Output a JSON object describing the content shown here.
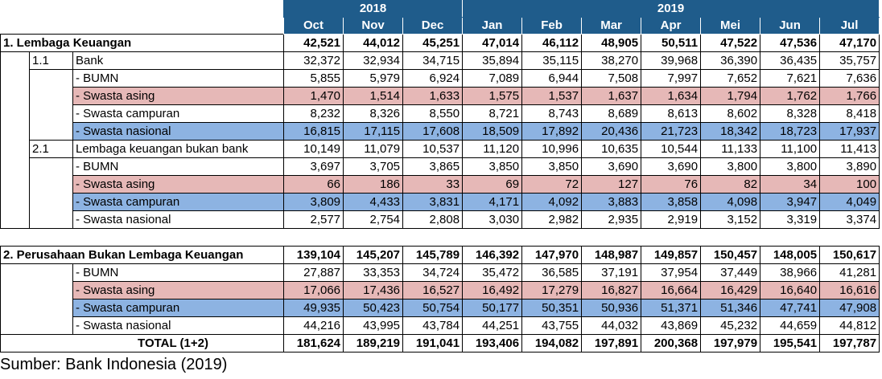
{
  "years": [
    "2018",
    "2019"
  ],
  "months": [
    "Oct",
    "Nov",
    "Dec",
    "Jan",
    "Feb",
    "Mar",
    "Apr",
    "Mei",
    "Jun",
    "Jul"
  ],
  "sections": [
    {
      "label": "1.  Lembaga Keuangan",
      "values": [
        "42,521",
        "44,012",
        "45,251",
        "47,014",
        "46,112",
        "48,905",
        "50,511",
        "47,522",
        "47,536",
        "47,170"
      ],
      "subsections": [
        {
          "code": "1.1",
          "label": "Bank",
          "values": [
            "32,372",
            "32,934",
            "34,715",
            "35,894",
            "35,115",
            "38,270",
            "39,968",
            "36,390",
            "36,435",
            "35,757"
          ],
          "rows": [
            {
              "label": "- BUMN",
              "tone": "",
              "values": [
                "5,855",
                "5,979",
                "6,924",
                "7,089",
                "6,944",
                "7,508",
                "7,997",
                "7,652",
                "7,621",
                "7,636"
              ]
            },
            {
              "label": "- Swasta asing",
              "tone": "pink",
              "values": [
                "1,470",
                "1,514",
                "1,633",
                "1,575",
                "1,537",
                "1,637",
                "1,634",
                "1,794",
                "1,762",
                "1,766"
              ]
            },
            {
              "label": "- Swasta campuran",
              "tone": "",
              "values": [
                "8,232",
                "8,326",
                "8,550",
                "8,721",
                "8,743",
                "8,689",
                "8,613",
                "8,602",
                "8,328",
                "8,418"
              ]
            },
            {
              "label": "- Swasta nasional",
              "tone": "blue",
              "values": [
                "16,815",
                "17,115",
                "17,608",
                "18,509",
                "17,892",
                "20,436",
                "21,723",
                "18,342",
                "18,723",
                "17,937"
              ]
            }
          ]
        },
        {
          "code": "2.1",
          "label": "Lembaga keuangan bukan bank",
          "values": [
            "10,149",
            "11,079",
            "10,537",
            "11,120",
            "10,996",
            "10,635",
            "10,544",
            "11,133",
            "11,100",
            "11,413"
          ],
          "rows": [
            {
              "label": "- BUMN",
              "tone": "",
              "values": [
                "3,697",
                "3,705",
                "3,865",
                "3,850",
                "3,850",
                "3,690",
                "3,690",
                "3,800",
                "3,800",
                "3,890"
              ]
            },
            {
              "label": "- Swasta asing",
              "tone": "pink",
              "values": [
                "66",
                "186",
                "33",
                "69",
                "72",
                "127",
                "76",
                "82",
                "34",
                "100"
              ]
            },
            {
              "label": "- Swasta campuran",
              "tone": "blue",
              "values": [
                "3,809",
                "4,433",
                "3,831",
                "4,171",
                "4,092",
                "3,883",
                "3,858",
                "4,098",
                "3,947",
                "4,049"
              ]
            },
            {
              "label": "- Swasta nasional",
              "tone": "",
              "values": [
                "2,577",
                "2,754",
                "2,808",
                "3,030",
                "2,982",
                "2,935",
                "2,919",
                "3,152",
                "3,319",
                "3,374"
              ]
            }
          ]
        }
      ]
    },
    {
      "label": "2.  Perusahaan Bukan Lembaga Keuangan",
      "values": [
        "139,104",
        "145,207",
        "145,789",
        "146,392",
        "147,970",
        "148,987",
        "149,857",
        "150,457",
        "148,005",
        "150,617"
      ],
      "rows": [
        {
          "label": "- BUMN",
          "tone": "",
          "values": [
            "27,887",
            "33,353",
            "34,724",
            "35,472",
            "36,585",
            "37,191",
            "37,954",
            "37,449",
            "38,966",
            "41,281"
          ]
        },
        {
          "label": "- Swasta asing",
          "tone": "pink",
          "values": [
            "17,066",
            "17,436",
            "16,527",
            "16,492",
            "17,279",
            "16,827",
            "16,664",
            "16,429",
            "16,640",
            "16,616"
          ]
        },
        {
          "label": "- Swasta campuran",
          "tone": "blue",
          "values": [
            "49,935",
            "50,423",
            "50,754",
            "50,177",
            "50,351",
            "50,936",
            "51,371",
            "51,346",
            "47,741",
            "47,908"
          ]
        },
        {
          "label": "- Swasta nasional",
          "tone": "",
          "values": [
            "44,216",
            "43,995",
            "43,784",
            "44,251",
            "43,755",
            "44,032",
            "43,869",
            "45,232",
            "44,659",
            "44,812"
          ]
        }
      ]
    }
  ],
  "total": {
    "label": "TOTAL (1+2)",
    "values": [
      "181,624",
      "189,219",
      "191,041",
      "193,406",
      "194,082",
      "197,891",
      "200,368",
      "197,979",
      "195,541",
      "197,787"
    ]
  },
  "source": "Sumber: Bank Indonesia (2019)",
  "colors": {
    "header": "#1f5c8b",
    "pink": "#e6b8b7",
    "blue": "#8db3e2"
  }
}
